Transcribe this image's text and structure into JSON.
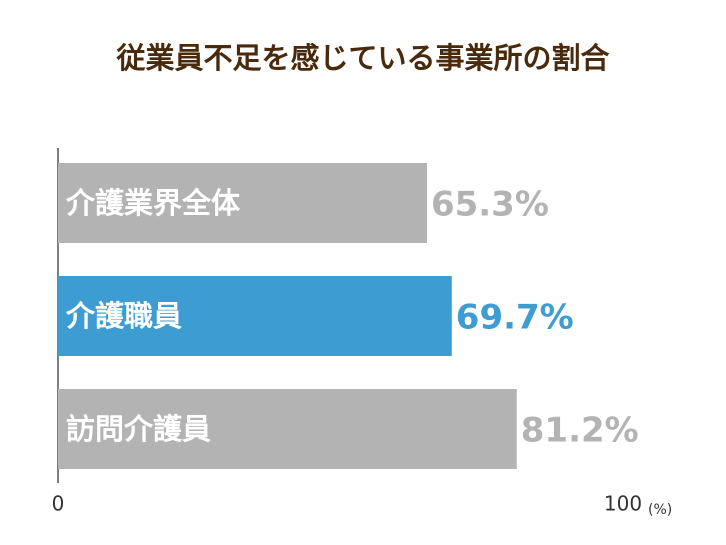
{
  "chart_data": {
    "type": "bar",
    "orientation": "horizontal",
    "title": "従業員不足を感じている事業所の割合",
    "categories": [
      "介護業界全体",
      "介護職員",
      "訪問介護員"
    ],
    "values": [
      65.3,
      69.7,
      81.2
    ],
    "value_labels": [
      "65.3%",
      "69.7%",
      "81.2%"
    ],
    "colors": [
      "#b3b3b3",
      "#3d9dd3",
      "#b3b3b3"
    ],
    "xlim": [
      0,
      100
    ],
    "xticks": [
      0,
      100
    ],
    "xlabel": "(%)"
  }
}
